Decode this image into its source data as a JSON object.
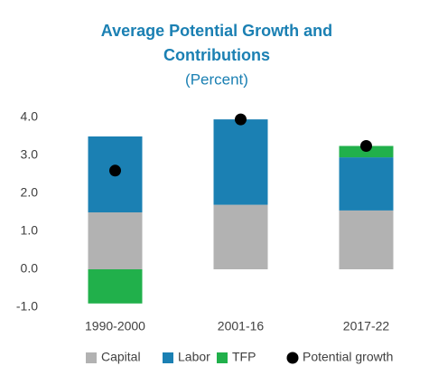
{
  "chart_data": {
    "type": "stacked-bar",
    "title_lines": [
      "Average Potential Growth and",
      "Contributions"
    ],
    "subtitle": "(Percent)",
    "categories": [
      "1990-2000",
      "2001-16",
      "2017-22"
    ],
    "series": [
      {
        "name": "Capital",
        "color": "#b2b2b2",
        "values": [
          1.5,
          1.7,
          1.55
        ]
      },
      {
        "name": "Labor",
        "color": "#1b80b3",
        "values": [
          2.0,
          2.25,
          1.4
        ]
      },
      {
        "name": "TFP",
        "color": "#21b04b",
        "values": [
          -0.9,
          0.0,
          0.3
        ]
      },
      {
        "name": "Potential growth",
        "color": "#000000",
        "kind": "dot",
        "values": [
          2.6,
          3.95,
          3.25
        ]
      }
    ],
    "ylim": [
      -1.0,
      4.0
    ],
    "yticks": [
      {
        "value": -1,
        "label": "-1.0"
      },
      {
        "value": 0,
        "label": "0.0"
      },
      {
        "value": 1,
        "label": "1.0"
      },
      {
        "value": 2,
        "label": "2.0"
      },
      {
        "value": 3,
        "label": "3.0"
      },
      {
        "value": 4,
        "label": "4.0"
      }
    ],
    "grid": false,
    "legend": "bottom"
  }
}
